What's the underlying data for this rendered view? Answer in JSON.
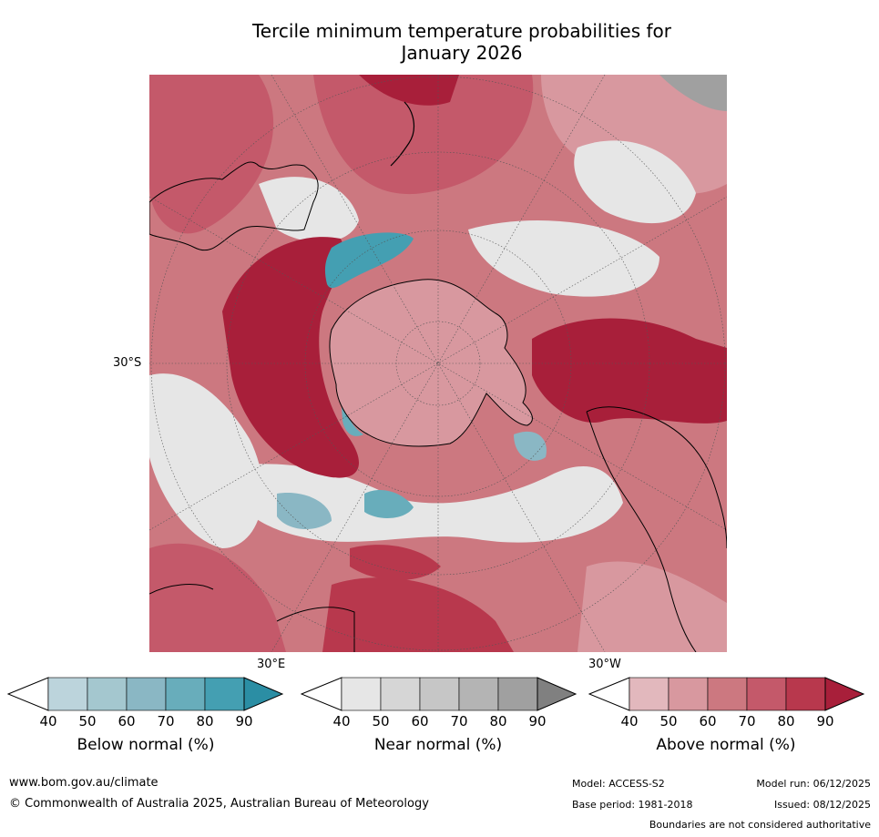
{
  "title_line1": "Tercile minimum temperature probabilities for",
  "title_line2": "January 2026",
  "labels": {
    "lat": "30°S",
    "lon_left": "30°E",
    "lon_right": "30°W"
  },
  "legends": [
    {
      "title": "Below normal (%)",
      "ticks": [
        "40",
        "50",
        "60",
        "70",
        "80",
        "90"
      ],
      "colors": [
        "#ffffff",
        "#bcd4dc",
        "#a4c7cf",
        "#8ab7c4",
        "#68adbb",
        "#449fb2",
        "#2b8ea4"
      ]
    },
    {
      "title": "Near normal (%)",
      "ticks": [
        "40",
        "50",
        "60",
        "70",
        "80",
        "90"
      ],
      "colors": [
        "#ffffff",
        "#e6e6e6",
        "#d6d6d6",
        "#c6c6c6",
        "#b4b4b4",
        "#a0a0a0",
        "#808080"
      ]
    },
    {
      "title": "Above normal (%)",
      "ticks": [
        "40",
        "50",
        "60",
        "70",
        "80",
        "90"
      ],
      "colors": [
        "#ffffff",
        "#e2b8bd",
        "#d8989f",
        "#cc7880",
        "#c4596a",
        "#b8384d",
        "#a81f3a"
      ]
    }
  ],
  "footer": {
    "url": "www.bom.gov.au/climate",
    "copyright": "© Commonwealth of Australia 2025, Australian Bureau of Meteorology",
    "model": "Model: ACCESS-S2",
    "base_period": "Base period: 1981-2018",
    "model_run": "Model run: 06/12/2025",
    "issued": "Issued: 08/12/2025",
    "disclaimer": "Boundaries are not considered authoritative"
  }
}
